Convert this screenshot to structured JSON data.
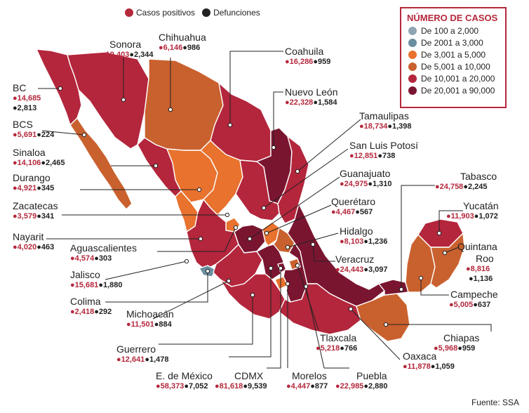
{
  "legend_top": {
    "positives": "Casos positivos",
    "deaths": "Defunciones"
  },
  "colors": {
    "positive": "#b5283c",
    "death": "#222222",
    "class_1": "#8fa5b3",
    "class_2": "#6b8ea0",
    "class_3": "#e8722e",
    "class_4": "#c9612e",
    "class_5": "#b3263c",
    "class_6": "#7a1530"
  },
  "legend": {
    "title": "NÚMERO DE CASOS",
    "items": [
      {
        "label": "De 100 a 2,000",
        "color": "#8fa5b3"
      },
      {
        "label": "De 2001 a 3,000",
        "color": "#6b8ea0"
      },
      {
        "label": "De 3,001 a 5,000",
        "color": "#e8722e"
      },
      {
        "label": "De 5,001 a 10,000",
        "color": "#c9612e"
      },
      {
        "label": "De 10,001 a 20,000",
        "color": "#b3263c"
      },
      {
        "label": "De 20,001 a 90,000",
        "color": "#7a1530"
      }
    ]
  },
  "states": {
    "bc": {
      "name": "BC",
      "positive": "14,685",
      "deaths": "2,813"
    },
    "bcs": {
      "name": "BCS",
      "positive": "5,691",
      "deaths": "224"
    },
    "sonora": {
      "name": "Sonora",
      "positive": "19,403",
      "deaths": "2,344"
    },
    "chihuahua": {
      "name": "Chihuahua",
      "positive": "6,146",
      "deaths": "986"
    },
    "coahuila": {
      "name": "Coahuila",
      "positive": "16,286",
      "deaths": "959"
    },
    "nuevo_leon": {
      "name": "Nuevo León",
      "positive": "22,328",
      "deaths": "1,584"
    },
    "tamaulipas": {
      "name": "Tamaulipas",
      "positive": "18,734",
      "deaths": "1,398"
    },
    "slp": {
      "name": "San Luis Potosí",
      "positive": "12,851",
      "deaths": "738"
    },
    "sinaloa": {
      "name": "Sinaloa",
      "positive": "14,106",
      "deaths": "2,465"
    },
    "durango": {
      "name": "Durango",
      "positive": "4,921",
      "deaths": "345"
    },
    "zacatecas": {
      "name": "Zacatecas",
      "positive": "3,579",
      "deaths": "341"
    },
    "nayarit": {
      "name": "Nayarit",
      "positive": "4,020",
      "deaths": "463"
    },
    "aguascalientes": {
      "name": "Aguascalientes",
      "positive": "4,574",
      "deaths": "303"
    },
    "jalisco": {
      "name": "Jalisco",
      "positive": "15,681",
      "deaths": "1,880"
    },
    "colima": {
      "name": "Colima",
      "positive": "2,418",
      "deaths": "292"
    },
    "michoacan": {
      "name": "Michoacán",
      "positive": "11,501",
      "deaths": "884"
    },
    "guerrero": {
      "name": "Guerrero",
      "positive": "12,641",
      "deaths": "1,478"
    },
    "edomex": {
      "name": "E. de México",
      "positive": "58,373",
      "deaths": "7,052"
    },
    "cdmx": {
      "name": "CDMX",
      "positive": "81,618",
      "deaths": "9,539"
    },
    "morelos": {
      "name": "Morelos",
      "positive": "4,447",
      "deaths": "877"
    },
    "puebla": {
      "name": "Puebla",
      "positive": "22,985",
      "deaths": "2,880"
    },
    "oaxaca": {
      "name": "Oaxaca",
      "positive": "11,878",
      "deaths": "1,059"
    },
    "tlaxcala": {
      "name": "Tlaxcala",
      "positive": "5,218",
      "deaths": "766"
    },
    "veracruz": {
      "name": "Veracruz",
      "positive": "24,443",
      "deaths": "3,097"
    },
    "hidalgo": {
      "name": "Hidalgo",
      "positive": "8,103",
      "deaths": "1,236"
    },
    "queretaro": {
      "name": "Querétaro",
      "positive": "4,467",
      "deaths": "567"
    },
    "guanajuato": {
      "name": "Guanajuato",
      "positive": "24,975",
      "deaths": "1,310"
    },
    "tabasco": {
      "name": "Tabasco",
      "positive": "24,758",
      "deaths": "2,245"
    },
    "yucatan": {
      "name": "Yucatán",
      "positive": "11,903",
      "deaths": "1,072"
    },
    "quintana_roo": {
      "name": "Quintana Roo",
      "name_line1": "Quintana",
      "name_line2": "Roo",
      "positive": "8,816",
      "deaths": "1,136"
    },
    "campeche": {
      "name": "Campeche",
      "positive": "5,005",
      "deaths": "637"
    },
    "chiapas": {
      "name": "Chiapas",
      "positive": "5,968",
      "deaths": "959"
    }
  },
  "source": "Fuente: SSA"
}
